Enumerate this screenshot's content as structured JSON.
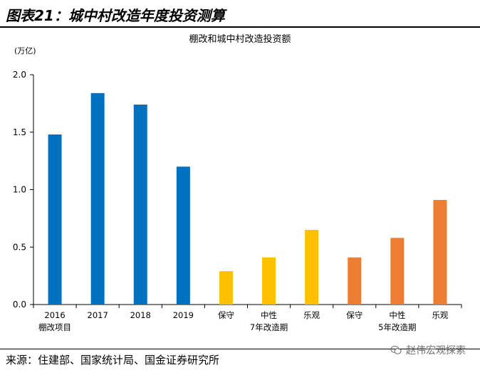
{
  "figure": {
    "title": "图表21：城中村改造年度投资测算",
    "source": "来源：住建部、国家统计局、国金证券研究所",
    "watermark": "赵伟宏观探索",
    "watermark_icon": "wechat-icon"
  },
  "chart_data": {
    "type": "bar",
    "title": "棚改和城中村改造投资额",
    "unit_label": "(万亿)",
    "ylim": [
      0,
      2.0
    ],
    "y_ticks": [
      "0.0",
      "0.5",
      "1.0",
      "1.5",
      "2.0"
    ],
    "categories": [
      "2016",
      "2017",
      "2018",
      "2019",
      "保守",
      "中性",
      "乐观",
      "保守",
      "中性",
      "乐观"
    ],
    "values": [
      1.48,
      1.84,
      1.74,
      1.2,
      0.29,
      0.41,
      0.65,
      0.41,
      0.58,
      0.91
    ],
    "bar_colors": [
      "#0070C0",
      "#0070C0",
      "#0070C0",
      "#0070C0",
      "#FFC000",
      "#FFC000",
      "#FFC000",
      "#ED7D31",
      "#ED7D31",
      "#ED7D31"
    ],
    "group_labels": [
      {
        "label": "棚改项目",
        "from": 0,
        "to": 0
      },
      {
        "label": "7年改造期",
        "from": 4,
        "to": 6
      },
      {
        "label": "5年改造期",
        "from": 7,
        "to": 9
      }
    ],
    "grid": false
  }
}
